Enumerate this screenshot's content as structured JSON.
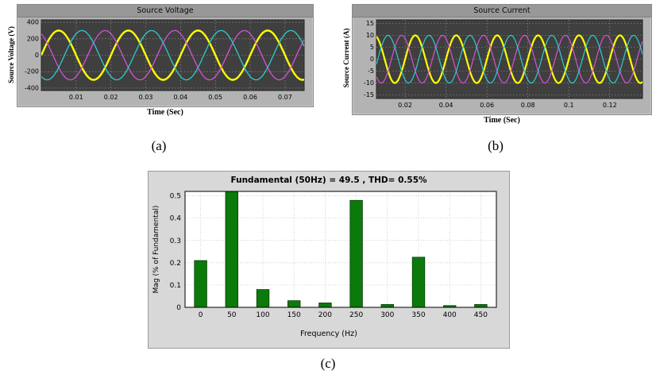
{
  "figure": {
    "captions": {
      "a": "(a)",
      "b": "(b)",
      "c": "(c)"
    }
  },
  "chart_data": [
    {
      "id": "source-voltage",
      "type": "line",
      "title": "Source Voltage",
      "xlabel": "Time (Sec)",
      "ylabel": "Source Voltage (V)",
      "xlim": [
        0,
        0.0755
      ],
      "ylim": [
        -430,
        430
      ],
      "xticks": [
        0.01,
        0.02,
        0.03,
        0.04,
        0.05,
        0.06,
        0.07
      ],
      "yticks": [
        400,
        200,
        0,
        -200,
        -400
      ],
      "grid": true,
      "plot_bg": "#3f3f3f",
      "series": [
        {
          "name": "phase-a-yellow",
          "color": "#ffff00",
          "amplitude": 300,
          "frequency_hz": 50,
          "phase_deg": 0,
          "width": 2.4
        },
        {
          "name": "phase-b-magenta",
          "color": "#d94fd9",
          "amplitude": 300,
          "frequency_hz": 50,
          "phase_deg": 120,
          "width": 1.3
        },
        {
          "name": "phase-c-cyan",
          "color": "#2ecccc",
          "amplitude": 300,
          "frequency_hz": 50,
          "phase_deg": -120,
          "width": 1.3
        }
      ]
    },
    {
      "id": "source-current",
      "type": "line",
      "title": "Source Current",
      "xlabel": "Time (Sec)",
      "ylabel": "Source Current (A)",
      "xlim": [
        0.006,
        0.136
      ],
      "ylim": [
        -16.5,
        16.5
      ],
      "xticks": [
        0.02,
        0.04,
        0.06,
        0.08,
        0.1,
        0.12
      ],
      "yticks": [
        15,
        10,
        5,
        0,
        -5,
        -10,
        -15
      ],
      "grid": true,
      "plot_bg": "#3f3f3f",
      "series": [
        {
          "name": "phase-a-yellow",
          "color": "#ffff00",
          "amplitude": 10,
          "frequency_hz": 50,
          "phase_deg": 0,
          "width": 2.2
        },
        {
          "name": "phase-b-magenta",
          "color": "#d94fd9",
          "amplitude": 10,
          "frequency_hz": 50,
          "phase_deg": 120,
          "width": 1.2
        },
        {
          "name": "phase-c-cyan",
          "color": "#2ecccc",
          "amplitude": 10,
          "frequency_hz": 50,
          "phase_deg": -120,
          "width": 1.2
        }
      ]
    },
    {
      "id": "fft-spectrum",
      "type": "bar",
      "title": "Fundamental (50Hz) = 49.5 , THD= 0.55%",
      "xlabel": "Frequency (Hz)",
      "ylabel": "Mag (% of Fundamental)",
      "categories": [
        0,
        50,
        100,
        150,
        200,
        250,
        300,
        350,
        400,
        450
      ],
      "values": [
        0.21,
        0.52,
        0.08,
        0.03,
        0.02,
        0.48,
        0.013,
        0.225,
        0.008,
        0.013
      ],
      "xlim": [
        -25,
        475
      ],
      "ylim": [
        0,
        0.52
      ],
      "yticks": [
        0,
        0.1,
        0.2,
        0.3,
        0.4,
        0.5
      ],
      "grid": true,
      "bar_color": "#0b7a0b",
      "bar_edge_color": "#033303"
    }
  ]
}
